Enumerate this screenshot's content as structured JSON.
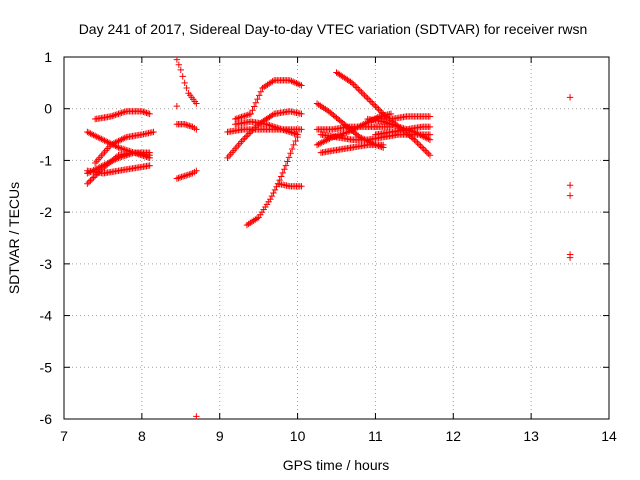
{
  "chart_data": {
    "type": "scatter",
    "title": "Day 241 of 2017, Sidereal Day-to-day VTEC variation (SDTVAR) for receiver rwsn",
    "xlabel": "GPS time / hours",
    "ylabel": "SDTVAR / TECUs",
    "xlim": [
      7,
      14
    ],
    "ylim": [
      -6,
      1
    ],
    "x_ticks": [
      7,
      8,
      9,
      10,
      11,
      12,
      13,
      14
    ],
    "x_tick_labels": [
      "7",
      "8",
      "9",
      "10",
      "11",
      "12",
      "13",
      "14"
    ],
    "y_ticks": [
      1,
      0,
      -1,
      -2,
      -3,
      -4,
      -5,
      -6
    ],
    "y_tick_labels": [
      "1",
      "0",
      "-1",
      "-2",
      "-3",
      "-4",
      "-5",
      "-6"
    ],
    "grid": true,
    "marker": "+",
    "color": "#ff0000",
    "segments": [
      {
        "x": [
          7.3,
          7.5,
          7.7,
          7.9,
          8.1
        ],
        "y": [
          -1.45,
          -1.15,
          -0.9,
          -0.85,
          -0.9
        ]
      },
      {
        "x": [
          7.3,
          7.5,
          7.7,
          7.9,
          8.1
        ],
        "y": [
          -0.45,
          -0.6,
          -0.75,
          -0.85,
          -0.95
        ]
      },
      {
        "x": [
          7.4,
          7.6,
          7.8,
          8.0,
          8.1
        ],
        "y": [
          -0.2,
          -0.15,
          -0.05,
          -0.05,
          -0.1
        ]
      },
      {
        "x": [
          7.3,
          7.5,
          7.7,
          7.9,
          8.1
        ],
        "y": [
          -1.2,
          -1.25,
          -1.2,
          -1.15,
          -1.1
        ]
      },
      {
        "x": [
          7.4,
          7.6,
          7.8,
          8.0,
          8.15
        ],
        "y": [
          -1.05,
          -0.7,
          -0.55,
          -0.5,
          -0.45
        ]
      },
      {
        "x": [
          7.3,
          7.5,
          7.7,
          7.9,
          8.1
        ],
        "y": [
          -1.25,
          -1.1,
          -0.95,
          -0.85,
          -0.85
        ]
      },
      {
        "x": [
          8.45,
          8.5,
          8.55,
          8.6,
          8.7
        ],
        "y": [
          0.95,
          0.75,
          0.5,
          0.3,
          0.1
        ]
      },
      {
        "x": [
          8.45,
          8.55,
          8.65,
          8.7
        ],
        "y": [
          -0.3,
          -0.3,
          -0.35,
          -0.4
        ]
      },
      {
        "x": [
          8.45,
          8.55,
          8.65,
          8.7
        ],
        "y": [
          -1.35,
          -1.3,
          -1.25,
          -1.2
        ]
      },
      {
        "x": [
          8.45
        ],
        "y": [
          0.05
        ]
      },
      {
        "x": [
          8.7
        ],
        "y": [
          -5.95
        ]
      },
      {
        "x": [
          9.1,
          9.3,
          9.5,
          9.7,
          9.9,
          10.05
        ],
        "y": [
          -0.95,
          -0.6,
          -0.3,
          -0.1,
          -0.05,
          -0.1
        ]
      },
      {
        "x": [
          9.1,
          9.3,
          9.5,
          9.7,
          9.9,
          10.05
        ],
        "y": [
          -0.45,
          -0.4,
          -0.4,
          -0.4,
          -0.4,
          -0.4
        ]
      },
      {
        "x": [
          9.2,
          9.4,
          9.55,
          9.7,
          9.9,
          10.05
        ],
        "y": [
          -0.2,
          -0.1,
          0.4,
          0.55,
          0.55,
          0.45
        ]
      },
      {
        "x": [
          9.2,
          9.4,
          9.6,
          9.8,
          10.0
        ],
        "y": [
          -0.3,
          -0.25,
          -0.3,
          -0.4,
          -0.5
        ]
      },
      {
        "x": [
          9.35,
          9.5,
          9.65,
          9.75,
          9.85,
          9.95,
          10.0
        ],
        "y": [
          -2.25,
          -2.1,
          -1.75,
          -1.45,
          -1.1,
          -0.7,
          -0.55
        ]
      },
      {
        "x": [
          9.75,
          9.9,
          10.05
        ],
        "y": [
          -1.45,
          -1.5,
          -1.5
        ]
      },
      {
        "x": [
          10.25,
          10.4,
          10.6,
          10.8,
          11.0,
          11.1
        ],
        "y": [
          0.1,
          -0.05,
          -0.3,
          -0.55,
          -0.7,
          -0.75
        ]
      },
      {
        "x": [
          10.25,
          10.45,
          10.65,
          10.85,
          11.05,
          11.2
        ],
        "y": [
          -0.7,
          -0.55,
          -0.45,
          -0.3,
          -0.15,
          -0.1
        ]
      },
      {
        "x": [
          10.25,
          10.45,
          10.65,
          10.85,
          11.05,
          11.2
        ],
        "y": [
          -0.4,
          -0.4,
          -0.35,
          -0.35,
          -0.35,
          -0.35
        ]
      },
      {
        "x": [
          10.5,
          10.7,
          10.9,
          11.1,
          11.3,
          11.5,
          11.7
        ],
        "y": [
          0.7,
          0.5,
          0.2,
          -0.1,
          -0.35,
          -0.6,
          -0.9
        ]
      },
      {
        "x": [
          10.3,
          10.5,
          10.7,
          10.9,
          11.1,
          11.3,
          11.5,
          11.7
        ],
        "y": [
          -0.5,
          -0.55,
          -0.6,
          -0.6,
          -0.55,
          -0.5,
          -0.5,
          -0.5
        ]
      },
      {
        "x": [
          10.9,
          11.1,
          11.3,
          11.5,
          11.7
        ],
        "y": [
          -0.2,
          -0.25,
          -0.35,
          -0.45,
          -0.6
        ]
      },
      {
        "x": [
          11.0,
          11.2,
          11.4,
          11.6,
          11.7
        ],
        "y": [
          -0.2,
          -0.2,
          -0.15,
          -0.15,
          -0.15
        ]
      },
      {
        "x": [
          11.0,
          11.2,
          11.4,
          11.6,
          11.7
        ],
        "y": [
          -0.5,
          -0.45,
          -0.4,
          -0.35,
          -0.35
        ]
      },
      {
        "x": [
          10.3,
          10.5,
          10.7,
          10.9,
          11.1
        ],
        "y": [
          -0.85,
          -0.8,
          -0.75,
          -0.7,
          -0.7
        ]
      },
      {
        "x": [
          13.5
        ],
        "y": [
          0.22
        ]
      },
      {
        "x": [
          13.5
        ],
        "y": [
          -1.48
        ]
      },
      {
        "x": [
          13.5
        ],
        "y": [
          -1.68
        ]
      },
      {
        "x": [
          13.5
        ],
        "y": [
          -2.82
        ]
      },
      {
        "x": [
          13.5
        ],
        "y": [
          -2.88
        ]
      }
    ]
  }
}
